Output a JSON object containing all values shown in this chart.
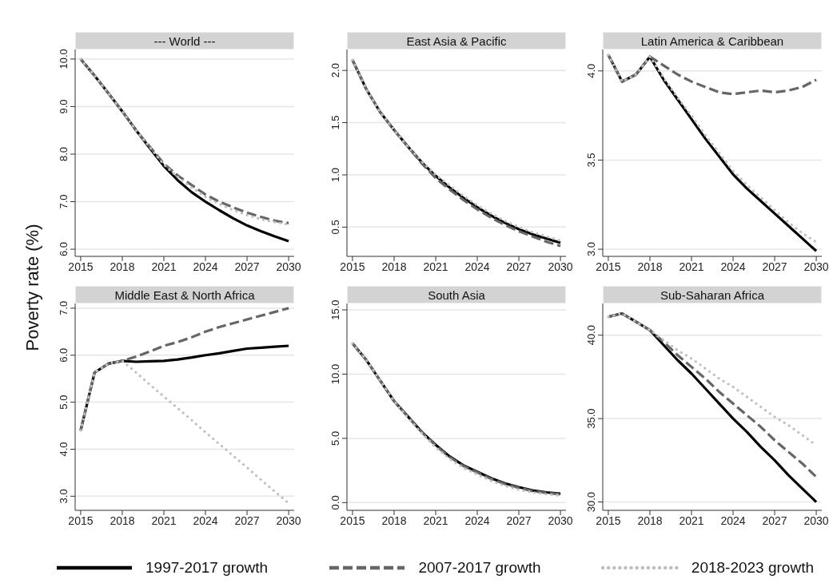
{
  "chart_data": [
    {
      "type": "line",
      "title": "--- World ---",
      "ylabel": "Poverty rate (%)",
      "x": [
        2015,
        2016,
        2017,
        2018,
        2019,
        2020,
        2021,
        2022,
        2023,
        2024,
        2025,
        2026,
        2027,
        2028,
        2029,
        2030
      ],
      "xlim": [
        2014.6,
        2030.4
      ],
      "xticks": [
        2015,
        2018,
        2021,
        2024,
        2027,
        2030
      ],
      "ylim": [
        5.85,
        10.2
      ],
      "yticks": [
        {
          "value": 6,
          "label": "6.0"
        },
        {
          "value": 7,
          "label": "7.0"
        },
        {
          "value": 8,
          "label": "8.0"
        },
        {
          "value": 9,
          "label": "9.0"
        },
        {
          "value": 10,
          "label": "10.0"
        }
      ],
      "grid": "y",
      "marker": "none",
      "legend": "bottom",
      "series": [
        {
          "name": "1997-2017 growth",
          "color": "#000000",
          "line_style": "solid",
          "values": [
            10.0,
            9.65,
            9.28,
            8.9,
            8.5,
            8.12,
            7.75,
            7.45,
            7.2,
            7.0,
            6.82,
            6.65,
            6.5,
            6.38,
            6.27,
            6.17
          ]
        },
        {
          "name": "2007-2017 growth",
          "color": "#666666",
          "line_style": "dashed",
          "values": [
            10.0,
            9.65,
            9.28,
            8.9,
            8.5,
            8.15,
            7.8,
            7.55,
            7.35,
            7.15,
            7.0,
            6.88,
            6.77,
            6.68,
            6.6,
            6.55
          ]
        },
        {
          "name": "2018-2023 growth",
          "color": "#c0c0c0",
          "line_style": "dotted",
          "values": [
            10.0,
            9.65,
            9.28,
            8.9,
            8.5,
            8.14,
            7.78,
            7.52,
            7.3,
            7.1,
            6.95,
            6.82,
            6.72,
            6.63,
            6.57,
            6.52
          ]
        }
      ]
    },
    {
      "type": "line",
      "title": "East Asia & Pacific",
      "x": [
        2015,
        2016,
        2017,
        2018,
        2019,
        2020,
        2021,
        2022,
        2023,
        2024,
        2025,
        2026,
        2027,
        2028,
        2029,
        2030
      ],
      "xlim": [
        2014.6,
        2030.4
      ],
      "xticks": [
        2015,
        2018,
        2021,
        2024,
        2027,
        2030
      ],
      "ylim": [
        0.22,
        2.2
      ],
      "yticks": [
        {
          "value": 0.5,
          "label": "0.5"
        },
        {
          "value": 1,
          "label": "1.0"
        },
        {
          "value": 1.5,
          "label": "1.5"
        },
        {
          "value": 2,
          "label": "2.0"
        }
      ],
      "grid": "y",
      "marker": "none",
      "series": [
        {
          "color": "#000000",
          "line_style": "solid",
          "values": [
            2.1,
            1.82,
            1.6,
            1.43,
            1.27,
            1.12,
            0.99,
            0.88,
            0.78,
            0.69,
            0.61,
            0.54,
            0.48,
            0.43,
            0.39,
            0.35
          ]
        },
        {
          "color": "#666666",
          "line_style": "dashed",
          "values": [
            2.1,
            1.82,
            1.6,
            1.43,
            1.27,
            1.11,
            0.97,
            0.86,
            0.76,
            0.67,
            0.59,
            0.52,
            0.46,
            0.41,
            0.36,
            0.32
          ]
        },
        {
          "color": "#c0c0c0",
          "line_style": "dotted",
          "values": [
            2.1,
            1.82,
            1.6,
            1.43,
            1.27,
            1.13,
            1.0,
            0.9,
            0.8,
            0.71,
            0.63,
            0.56,
            0.5,
            0.45,
            0.41,
            0.37
          ]
        }
      ]
    },
    {
      "type": "line",
      "title": "Latin America & Caribbean",
      "x": [
        2015,
        2016,
        2017,
        2018,
        2019,
        2020,
        2021,
        2022,
        2023,
        2024,
        2025,
        2026,
        2027,
        2028,
        2029,
        2030
      ],
      "xlim": [
        2014.6,
        2030.4
      ],
      "xticks": [
        2015,
        2018,
        2021,
        2024,
        2027,
        2030
      ],
      "ylim": [
        2.96,
        4.12
      ],
      "yticks": [
        {
          "value": 3,
          "label": "3.0"
        },
        {
          "value": 3.5,
          "label": "3.5"
        },
        {
          "value": 4,
          "label": "4.0"
        }
      ],
      "grid": "y",
      "marker": "none",
      "series": [
        {
          "color": "#000000",
          "line_style": "solid",
          "values": [
            4.09,
            3.94,
            3.98,
            4.08,
            3.95,
            3.84,
            3.73,
            3.62,
            3.52,
            3.42,
            3.34,
            3.27,
            3.2,
            3.13,
            3.06,
            2.99
          ]
        },
        {
          "color": "#666666",
          "line_style": "dashed",
          "values": [
            4.09,
            3.94,
            3.98,
            4.08,
            4.03,
            3.98,
            3.94,
            3.91,
            3.88,
            3.87,
            3.88,
            3.89,
            3.88,
            3.89,
            3.91,
            3.95
          ]
        },
        {
          "color": "#c0c0c0",
          "line_style": "dotted",
          "values": [
            4.09,
            3.94,
            3.98,
            4.08,
            3.96,
            3.85,
            3.75,
            3.64,
            3.54,
            3.44,
            3.36,
            3.29,
            3.22,
            3.15,
            3.09,
            3.04
          ]
        }
      ]
    },
    {
      "type": "line",
      "title": "Middle East & North Africa",
      "x": [
        2015,
        2016,
        2017,
        2018,
        2019,
        2020,
        2021,
        2022,
        2023,
        2024,
        2025,
        2026,
        2027,
        2028,
        2029,
        2030
      ],
      "xlim": [
        2014.6,
        2030.4
      ],
      "xticks": [
        2015,
        2018,
        2021,
        2024,
        2027,
        2030
      ],
      "ylim": [
        2.7,
        7.1
      ],
      "yticks": [
        {
          "value": 3,
          "label": "3.0"
        },
        {
          "value": 4,
          "label": "4.0"
        },
        {
          "value": 5,
          "label": "5.0"
        },
        {
          "value": 6,
          "label": "6.0"
        },
        {
          "value": 7,
          "label": "7.0"
        }
      ],
      "grid": "y",
      "marker": "none",
      "series": [
        {
          "color": "#000000",
          "line_style": "solid",
          "values": [
            4.4,
            5.63,
            5.82,
            5.88,
            5.86,
            5.87,
            5.88,
            5.91,
            5.95,
            6.0,
            6.04,
            6.09,
            6.14,
            6.16,
            6.18,
            6.2
          ]
        },
        {
          "color": "#666666",
          "line_style": "dashed",
          "values": [
            4.4,
            5.63,
            5.82,
            5.88,
            5.97,
            6.08,
            6.2,
            6.28,
            6.38,
            6.5,
            6.6,
            6.68,
            6.76,
            6.84,
            6.92,
            7.0
          ]
        },
        {
          "color": "#c0c0c0",
          "line_style": "dotted",
          "values": [
            4.4,
            5.63,
            5.82,
            5.88,
            5.63,
            5.37,
            5.12,
            4.87,
            4.62,
            4.36,
            4.11,
            3.86,
            3.61,
            3.35,
            3.1,
            2.85
          ]
        }
      ]
    },
    {
      "type": "line",
      "title": "South Asia",
      "x": [
        2015,
        2016,
        2017,
        2018,
        2019,
        2020,
        2021,
        2022,
        2023,
        2024,
        2025,
        2026,
        2027,
        2028,
        2029,
        2030
      ],
      "xlim": [
        2014.6,
        2030.4
      ],
      "xticks": [
        2015,
        2018,
        2021,
        2024,
        2027,
        2030
      ],
      "ylim": [
        -0.6,
        15.5
      ],
      "yticks": [
        {
          "value": 0,
          "label": "0.0"
        },
        {
          "value": 5,
          "label": "5.0"
        },
        {
          "value": 10,
          "label": "10.0"
        },
        {
          "value": 15,
          "label": "15.0"
        }
      ],
      "grid": "y",
      "marker": "none",
      "series": [
        {
          "color": "#000000",
          "line_style": "solid",
          "values": [
            12.4,
            11.1,
            9.5,
            7.9,
            6.7,
            5.5,
            4.5,
            3.6,
            2.9,
            2.4,
            1.9,
            1.5,
            1.2,
            0.95,
            0.8,
            0.7
          ]
        },
        {
          "color": "#666666",
          "line_style": "dashed",
          "values": [
            12.4,
            11.1,
            9.5,
            7.9,
            6.7,
            5.5,
            4.45,
            3.55,
            2.85,
            2.35,
            1.85,
            1.45,
            1.15,
            0.9,
            0.75,
            0.65
          ]
        },
        {
          "color": "#c0c0c0",
          "line_style": "dotted",
          "values": [
            12.4,
            11.1,
            9.5,
            7.9,
            6.6,
            5.4,
            4.3,
            3.4,
            2.7,
            2.2,
            1.7,
            1.3,
            1.0,
            0.8,
            0.65,
            0.55
          ]
        }
      ]
    },
    {
      "type": "line",
      "title": "Sub-Saharan Africa",
      "x": [
        2015,
        2016,
        2017,
        2018,
        2019,
        2020,
        2021,
        2022,
        2023,
        2024,
        2025,
        2026,
        2027,
        2028,
        2029,
        2030
      ],
      "xlim": [
        2014.6,
        2030.4
      ],
      "xticks": [
        2015,
        2018,
        2021,
        2024,
        2027,
        2030
      ],
      "ylim": [
        29.5,
        41.9
      ],
      "yticks": [
        {
          "value": 30,
          "label": "30.0"
        },
        {
          "value": 35,
          "label": "35.0"
        },
        {
          "value": 40,
          "label": "40.0"
        }
      ],
      "grid": "y",
      "marker": "none",
      "series": [
        {
          "color": "#000000",
          "line_style": "solid",
          "values": [
            41.1,
            41.3,
            40.8,
            40.3,
            39.4,
            38.5,
            37.7,
            36.8,
            35.9,
            35.0,
            34.2,
            33.3,
            32.5,
            31.6,
            30.8,
            30.0
          ]
        },
        {
          "color": "#666666",
          "line_style": "dashed",
          "values": [
            41.1,
            41.3,
            40.8,
            40.3,
            39.6,
            38.8,
            38.1,
            37.4,
            36.6,
            35.9,
            35.2,
            34.5,
            33.7,
            33.0,
            32.3,
            31.5
          ]
        },
        {
          "color": "#c0c0c0",
          "line_style": "dotted",
          "values": [
            41.1,
            41.3,
            40.8,
            40.3,
            39.7,
            39.1,
            38.6,
            38.0,
            37.4,
            36.9,
            36.3,
            35.7,
            35.1,
            34.6,
            34.0,
            33.4
          ]
        }
      ]
    }
  ]
}
